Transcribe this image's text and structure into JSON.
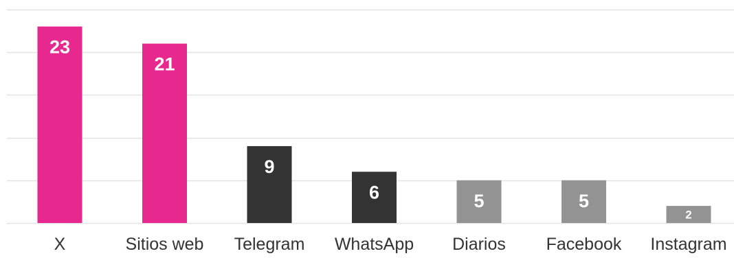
{
  "chart_data": {
    "type": "bar",
    "categories": [
      "X",
      "Sitios web",
      "Telegram",
      "WhatsApp",
      "Diarios",
      "Facebook",
      "Instagram"
    ],
    "values": [
      23,
      21,
      9,
      6,
      5,
      5,
      2
    ],
    "bar_colors": [
      "#e6288f",
      "#e6288f",
      "#333333",
      "#333333",
      "#939393",
      "#939393",
      "#939393"
    ],
    "data_labels": [
      "23",
      "21",
      "9",
      "6",
      "5",
      "5",
      "2"
    ],
    "ylim": [
      0,
      25
    ],
    "gridline_values": [
      0,
      5,
      10,
      15,
      20,
      25
    ],
    "grid": true,
    "legend": "none",
    "title": "",
    "xlabel": "",
    "ylabel": ""
  },
  "colors": {
    "gridline": "#e3e3e3",
    "axis_text": "#333333",
    "bar_label": "#ffffff"
  }
}
